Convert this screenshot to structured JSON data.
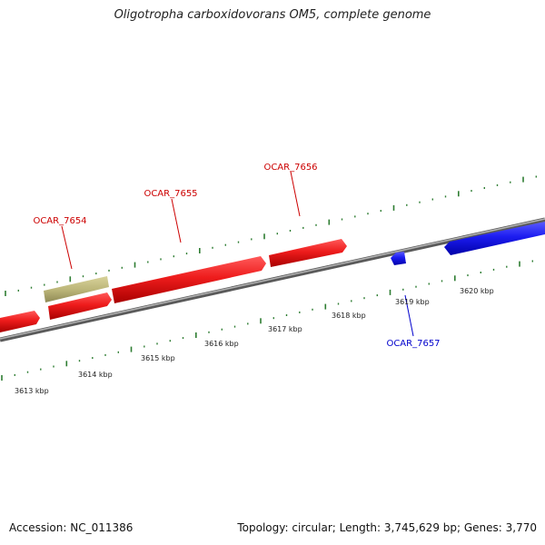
{
  "title": "Oligotropha carboxidovorans OM5, complete genome",
  "footer": {
    "accession": "Accession: NC_011386",
    "topology": "Topology: circular; Length: 3,745,629 bp; Genes: 3,770"
  },
  "scale": {
    "unit": "kbp",
    "ticks": [
      "3613 kbp",
      "3614 kbp",
      "3615 kbp",
      "3616 kbp",
      "3617 kbp",
      "3618 kbp",
      "3619 kbp",
      "3620 kbp"
    ]
  },
  "genes": [
    {
      "id": "OCAR_7654",
      "label": "OCAR_7654",
      "strand": "forward",
      "color": "#e02020"
    },
    {
      "id": "OCAR_7655",
      "label": "OCAR_7655",
      "strand": "forward",
      "color": "#e02020"
    },
    {
      "id": "OCAR_7656",
      "label": "OCAR_7656",
      "strand": "forward",
      "color": "#e02020"
    },
    {
      "id": "OCAR_7657",
      "label": "OCAR_7657",
      "strand": "reverse",
      "color": "#1a1aee"
    }
  ],
  "colors": {
    "forward_gene": "#e02020",
    "reverse_gene": "#1a1aee",
    "other_feature": "#bdb77a",
    "backbone": "#8a8a8a",
    "ticks": "#2e7d32"
  }
}
